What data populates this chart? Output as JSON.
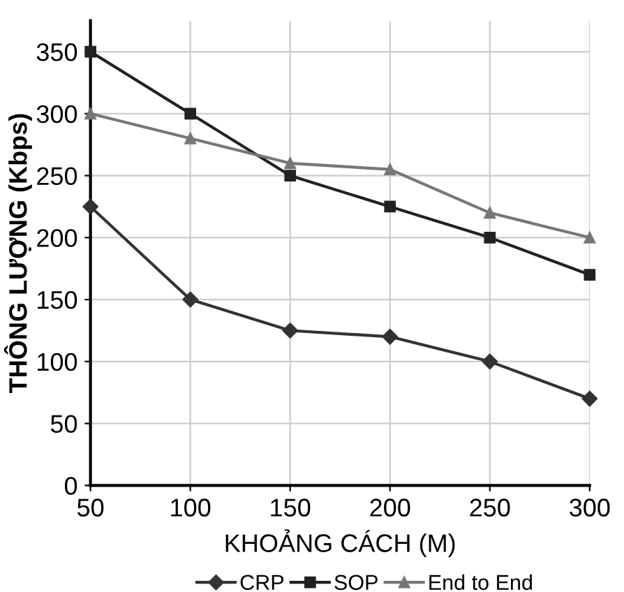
{
  "chart_data": {
    "type": "line",
    "xlabel": "KHOẢNG CÁCH (M)",
    "ylabel": "THÔNG LƯỢNG (Kbps)",
    "x": [
      50,
      100,
      150,
      200,
      250,
      300
    ],
    "series": [
      {
        "name": "CRP",
        "color": "#333333",
        "marker": "diamond",
        "values": [
          225,
          150,
          125,
          120,
          100,
          70
        ]
      },
      {
        "name": "SOP",
        "color": "#222222",
        "marker": "square",
        "values": [
          350,
          300,
          250,
          225,
          200,
          170
        ]
      },
      {
        "name": "End to End",
        "color": "#777777",
        "marker": "triangle",
        "values": [
          300,
          280,
          260,
          255,
          220,
          200
        ]
      }
    ],
    "xlim": [
      50,
      300
    ],
    "ylim": [
      0,
      375
    ],
    "xticks": [
      50,
      100,
      150,
      200,
      250,
      300
    ],
    "yticks": [
      0,
      50,
      100,
      150,
      200,
      250,
      300,
      350
    ],
    "grid": true,
    "legend": "bottom",
    "line_style": "solid"
  }
}
